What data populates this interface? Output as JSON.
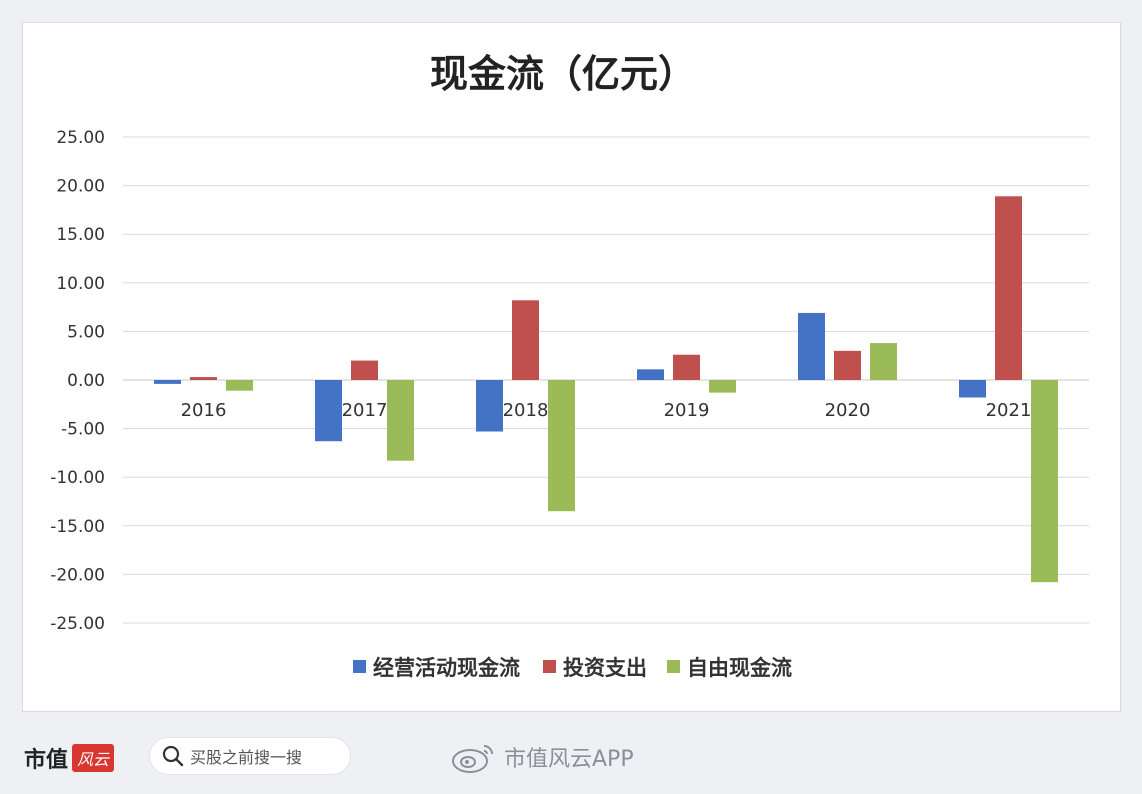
{
  "chart_data": {
    "type": "bar",
    "title": "现金流（亿元）",
    "categories": [
      "2016",
      "2017",
      "2018",
      "2019",
      "2020",
      "2021"
    ],
    "series": [
      {
        "name": "经营活动现金流",
        "color": "#4472c4",
        "values": [
          -0.4,
          -6.3,
          -5.3,
          1.1,
          6.9,
          -1.8
        ]
      },
      {
        "name": "投资支出",
        "color": "#c0504d",
        "values": [
          0.3,
          2.0,
          8.2,
          2.6,
          3.0,
          18.9
        ]
      },
      {
        "name": "自由现金流",
        "color": "#9bbb59",
        "values": [
          -1.1,
          -8.3,
          -13.5,
          -1.3,
          3.8,
          -20.8
        ]
      }
    ],
    "yticks": [
      "25.00",
      "20.00",
      "15.00",
      "10.00",
      "5.00",
      "0.00",
      "-5.00",
      "-10.00",
      "-15.00",
      "-20.00",
      "-25.00"
    ],
    "ylim": [
      -25,
      25
    ],
    "grid": true,
    "legend_position": "bottom"
  },
  "footer": {
    "brand": "市值",
    "brand_logo": "风云",
    "search_text": "买股之前搜一搜",
    "weibo_text": "市值风云APP"
  },
  "icons": {
    "search": "search-icon",
    "weibo": "weibo-icon"
  }
}
